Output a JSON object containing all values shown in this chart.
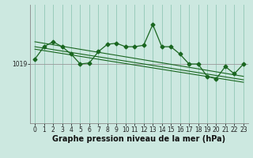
{
  "xlabel": "Graphe pression niveau de la mer (hPa)",
  "ylabel": "",
  "background_color": "#cce8e0",
  "plot_bg_color": "#cce8e0",
  "grid_color": "#99ccbb",
  "line_color": "#1a6620",
  "ref_line_value": 1019,
  "ref_line_color": "#999999",
  "xlim": [
    -0.5,
    23.5
  ],
  "x_ticks": [
    0,
    1,
    2,
    3,
    4,
    5,
    6,
    7,
    8,
    9,
    10,
    11,
    12,
    13,
    14,
    15,
    16,
    17,
    18,
    19,
    20,
    21,
    22,
    23
  ],
  "series_main": {
    "x": [
      0,
      1,
      2,
      3,
      4,
      5,
      6,
      7,
      8,
      9,
      10,
      11,
      12,
      13,
      14,
      15,
      16,
      17,
      18,
      19,
      20,
      21,
      22,
      23
    ],
    "y": [
      1020.0,
      1022.5,
      1023.5,
      1022.5,
      1021.0,
      1019.0,
      1019.2,
      1021.5,
      1023.0,
      1023.2,
      1022.5,
      1022.5,
      1022.8,
      1027.0,
      1022.5,
      1022.5,
      1021.0,
      1019.0,
      1019.0,
      1016.5,
      1016.0,
      1018.5,
      1017.0,
      1019.0
    ]
  },
  "series_lines": [
    {
      "x": [
        0,
        23
      ],
      "y": [
        1023.5,
        1016.5
      ]
    },
    {
      "x": [
        0,
        23
      ],
      "y": [
        1022.5,
        1015.8
      ]
    },
    {
      "x": [
        0,
        23
      ],
      "y": [
        1022.0,
        1015.3
      ]
    }
  ],
  "ylim": [
    1007.0,
    1031.0
  ],
  "yticks": [
    1019
  ],
  "fontsize_label": 7,
  "fontsize_tick": 5.5,
  "marker": "D",
  "markersize": 2.5,
  "linewidth_main": 0.9,
  "linewidth_trend": 0.8
}
